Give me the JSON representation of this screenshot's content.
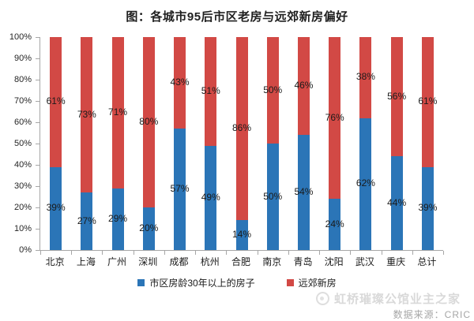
{
  "title": "图：各城市95后市区老房与远郊新房偏好",
  "colors": {
    "series_blue": "#2B75B7",
    "series_red": "#D24945",
    "axis": "#A6A6A6",
    "text": "#1A1A1A",
    "watermark": "#D9D9D9",
    "source": "#A6A6A6"
  },
  "chart_data": {
    "type": "bar",
    "stacked": true,
    "percent_stacked": true,
    "title": "图：各城市95后市区老房与远郊新房偏好",
    "categories": [
      "北京",
      "上海",
      "广州",
      "深圳",
      "成都",
      "杭州",
      "合肥",
      "南京",
      "青岛",
      "沈阳",
      "武汉",
      "重庆",
      "总计"
    ],
    "series": [
      {
        "name": "市区房龄30年以上的房子",
        "color": "#2B75B7",
        "values": [
          39,
          27,
          29,
          20,
          57,
          49,
          14,
          50,
          54,
          24,
          62,
          44,
          39
        ]
      },
      {
        "name": "远郊新房",
        "color": "#D24945",
        "values": [
          61,
          73,
          71,
          80,
          43,
          51,
          86,
          50,
          46,
          76,
          38,
          56,
          61
        ]
      }
    ],
    "y_ticks": [
      "100%",
      "90%",
      "80%",
      "70%",
      "60%",
      "50%",
      "40%",
      "30%",
      "20%",
      "10%",
      "0%"
    ],
    "ylim": [
      0,
      100
    ],
    "value_suffix": "%",
    "grid": false,
    "legend_position": "bottom",
    "xlabel": "",
    "ylabel": ""
  },
  "footer": {
    "watermark": "虹桥璀璨公馆业主之家",
    "source": "数据来源：CRIC"
  }
}
